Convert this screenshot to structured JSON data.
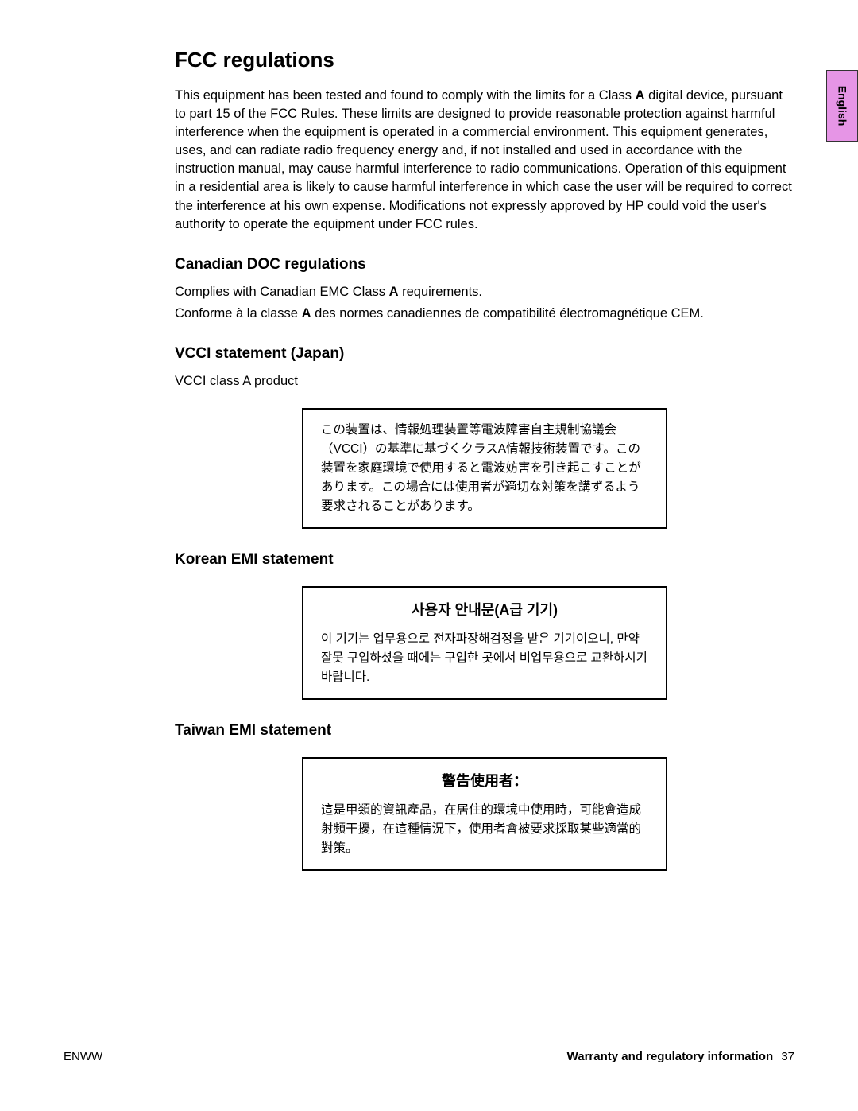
{
  "side_tab": {
    "label": "English",
    "bg_color": "#e695e6"
  },
  "h1": "FCC regulations",
  "fcc_para_pre": "This equipment has been tested and found to comply with the limits for a Class ",
  "fcc_bold_A": "A",
  "fcc_para_post": " digital device, pursuant to part 15 of the FCC Rules. These limits are designed to provide reasonable protection against harmful interference when the equipment is operated in a commercial environment. This equipment generates, uses, and can radiate radio frequency energy and, if not installed and used in accordance with the instruction manual, may cause harmful interference to radio communications. Operation of this equipment in a residential area is likely to cause harmful interference in which case the user will be required to correct the interference at his own expense. Modifications not expressly approved by HP could void the user's authority to operate the equipment under FCC rules.",
  "canadian": {
    "heading": "Canadian DOC regulations",
    "line1_pre": "Complies with Canadian EMC Class ",
    "line1_bold": "A",
    "line1_post": " requirements.",
    "line2_pre": "Conforme à la classe ",
    "line2_bold": "A",
    "line2_post": " des normes canadiennes de compatibilité électromagnétique CEM."
  },
  "vcci": {
    "heading": "VCCI statement (Japan)",
    "subtext": "VCCI class A product",
    "box": "この装置は、情報処理装置等電波障害自主規制協議会（VCCI）の基準に基づくクラスA情報技術装置です。この装置を家庭環境で使用すると電波妨害を引き起こすことがあります。この場合には使用者が適切な対策を講ずるよう要求されることがあります。"
  },
  "korean": {
    "heading": "Korean EMI statement",
    "box_title": "사용자 안내문(A급 기기)",
    "box_body": "이 기기는 업무용으로 전자파장해검정을 받은 기기이오니, 만약 잘못 구입하셨을 때에는 구입한 곳에서 비업무용으로 교환하시기 바랍니다."
  },
  "taiwan": {
    "heading": "Taiwan EMI statement",
    "box_title": "警告使用者：",
    "box_body": "這是甲類的資訊產品，在居住的環境中使用時，可能會造成射頻干擾，在這種情況下，使用者會被要求採取某些適當的對策。"
  },
  "footer": {
    "left": "ENWW",
    "right_label": "Warranty and regulatory information",
    "page_number": "37"
  }
}
